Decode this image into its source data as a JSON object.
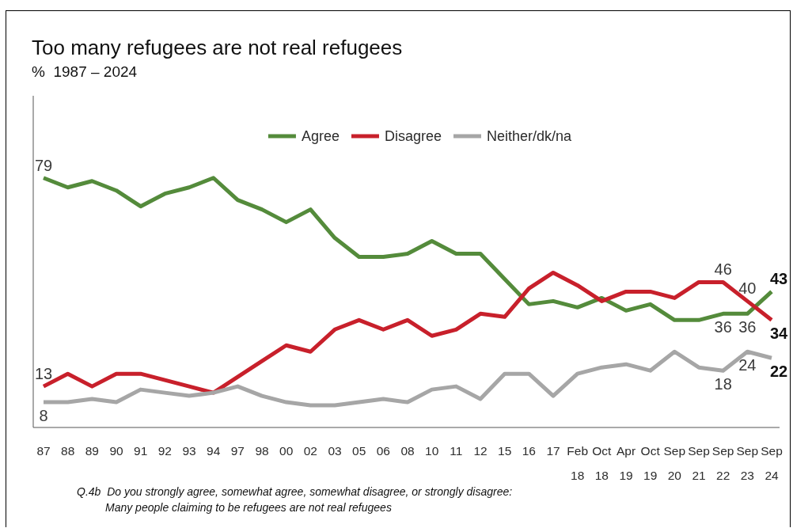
{
  "chart_data": {
    "type": "line",
    "title": "Too many refugees are not real refugees",
    "subtitle": "%  1987 – 2024",
    "categories": [
      "87",
      "88",
      "89",
      "90",
      "91",
      "92",
      "93",
      "94",
      "97",
      "98",
      "00",
      "02",
      "03",
      "05",
      "06",
      "08",
      "10",
      "11",
      "12",
      "15",
      "16",
      "17",
      "Feb 18",
      "Oct 18",
      "Apr 19",
      "Oct 19",
      "Sep 20",
      "Sep 21",
      "Sep 22",
      "Sep 23",
      "Sep 24"
    ],
    "series": [
      {
        "name": "Agree",
        "color": "#548b3b",
        "values": [
          79,
          76,
          78,
          75,
          70,
          74,
          76,
          79,
          72,
          69,
          65,
          69,
          60,
          54,
          54,
          55,
          59,
          55,
          55,
          47,
          39,
          40,
          38,
          41,
          37,
          39,
          34,
          34,
          36,
          36,
          43
        ],
        "value_labels": [
          "79",
          null,
          null,
          null,
          null,
          null,
          null,
          null,
          null,
          null,
          null,
          null,
          null,
          null,
          null,
          null,
          null,
          null,
          null,
          null,
          null,
          null,
          null,
          null,
          null,
          null,
          null,
          null,
          "36",
          "36",
          "43"
        ]
      },
      {
        "name": "Disagree",
        "color": "#c8202b",
        "values": [
          13,
          17,
          13,
          17,
          17,
          15,
          13,
          11,
          16,
          21,
          26,
          24,
          31,
          34,
          31,
          34,
          29,
          31,
          36,
          35,
          44,
          49,
          45,
          40,
          43,
          43,
          41,
          46,
          46,
          40,
          34
        ],
        "value_labels": [
          "13",
          null,
          null,
          null,
          null,
          null,
          null,
          null,
          null,
          null,
          null,
          null,
          null,
          null,
          null,
          null,
          null,
          null,
          null,
          null,
          null,
          null,
          null,
          null,
          null,
          null,
          null,
          null,
          "46",
          "40",
          "34"
        ]
      },
      {
        "name": "Neither/dk/na",
        "color": "#a6a6a6",
        "values": [
          8,
          8,
          9,
          8,
          12,
          11,
          10,
          11,
          13,
          10,
          8,
          7,
          7,
          8,
          9,
          8,
          12,
          13,
          9,
          17,
          17,
          10,
          17,
          19,
          20,
          18,
          24,
          19,
          18,
          24,
          22
        ],
        "value_labels": [
          "8",
          null,
          null,
          null,
          null,
          null,
          null,
          null,
          null,
          null,
          null,
          null,
          null,
          null,
          null,
          null,
          null,
          null,
          null,
          null,
          null,
          null,
          null,
          null,
          null,
          null,
          null,
          null,
          "18",
          "24",
          "22"
        ]
      }
    ],
    "ylim": [
      0,
      105
    ],
    "tick_labels": "x",
    "legend": "top",
    "annotations": [
      "Q.4b  Do you strongly agree, somewhat agree, somewhat disagree, or strongly disagree:",
      "Many people claiming to be refugees are not real refugees"
    ]
  }
}
